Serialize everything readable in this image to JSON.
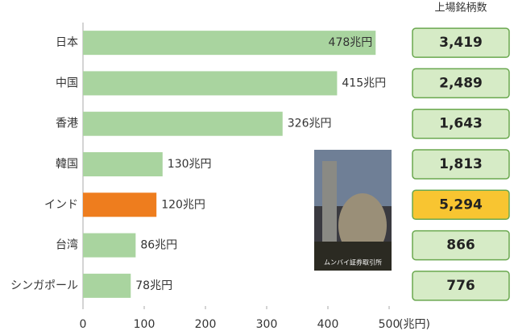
{
  "chart_data": {
    "type": "bar",
    "orientation": "horizontal",
    "x_label": "(兆円)",
    "categories": [
      "日本",
      "中国",
      "香港",
      "韓国",
      "インド",
      "台湾",
      "シンガポール"
    ],
    "values": [
      478,
      415,
      326,
      130,
      120,
      86,
      78
    ],
    "value_labels": [
      "478兆円",
      "415兆円",
      "326兆円",
      "130兆円",
      "120兆円",
      "86兆円",
      "78兆円"
    ],
    "colors": [
      "#a9d49f",
      "#a9d49f",
      "#a9d49f",
      "#a9d49f",
      "#ee7d1e",
      "#a9d49f",
      "#a9d49f"
    ],
    "xlim": [
      0,
      500
    ],
    "xticks": [
      0,
      100,
      200,
      300,
      400,
      500
    ],
    "listed_companies": {
      "title": "上場銘柄数",
      "values": [
        3419,
        2489,
        1643,
        1813,
        5294,
        866,
        776
      ],
      "value_labels": [
        "3,419",
        "2,489",
        "1,643",
        "1,813",
        "5,294",
        "866",
        "776"
      ],
      "colors": [
        "#d6ebc6",
        "#d6ebc6",
        "#d6ebc6",
        "#d6ebc6",
        "#f8c531",
        "#d6ebc6",
        "#d6ebc6"
      ]
    },
    "photo_caption": "ムンバイ証券取引所"
  }
}
